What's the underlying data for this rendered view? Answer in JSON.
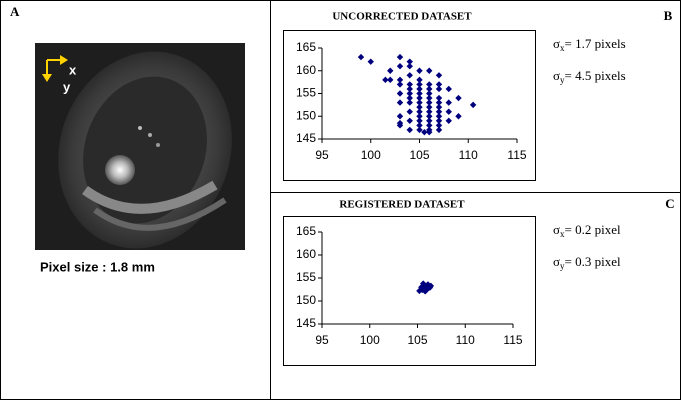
{
  "panel_a": {
    "label": "A",
    "caption": "Pixel size : 1.8 mm",
    "axis_labels": [
      "x",
      "y"
    ]
  },
  "chart_data": [
    {
      "type": "scatter",
      "panel": "B",
      "title": "UNCORRECTED DATASET",
      "color": "#00007f",
      "x": [
        99,
        100,
        103,
        103,
        104,
        102,
        101.5,
        102,
        103,
        104,
        104,
        105,
        105,
        106,
        107,
        103,
        105,
        106,
        107,
        104,
        105,
        106,
        107,
        108,
        103,
        104,
        105,
        106,
        107,
        109,
        104,
        105,
        106,
        103,
        104,
        105,
        106,
        107,
        108,
        110.5,
        105,
        106,
        107,
        104,
        105,
        106,
        107,
        108,
        103,
        105,
        106,
        107,
        104,
        105,
        106,
        107,
        108,
        103,
        105,
        106,
        107,
        104,
        105,
        106,
        107,
        106,
        105.5,
        103,
        109,
        104
      ],
      "y": [
        163,
        162,
        163,
        161,
        162,
        160,
        158,
        158,
        158,
        159,
        157,
        160,
        158,
        160,
        159,
        157,
        157,
        157,
        157,
        156,
        156,
        156,
        156,
        156,
        155,
        155,
        155,
        155,
        154,
        154,
        154,
        154,
        154,
        153,
        153,
        153,
        153,
        153,
        153,
        152.5,
        152,
        152,
        152,
        151,
        151,
        151,
        151,
        151,
        150,
        150,
        150,
        150,
        149,
        149,
        149,
        149,
        149,
        148,
        148,
        148,
        148,
        147,
        147,
        147,
        147,
        146.5,
        146.5,
        148.5,
        150,
        161
      ],
      "xlim": [
        95,
        115
      ],
      "xticks": [
        95,
        100,
        105,
        110,
        115
      ],
      "ylim": [
        145,
        165
      ],
      "yticks": [
        145,
        150,
        155,
        160,
        165
      ],
      "annotations": [
        {
          "symbol": "σ",
          "subscript": "x",
          "text": "= 1.7 pixels"
        },
        {
          "symbol": "σ",
          "subscript": "y",
          "text": "= 4.5 pixels"
        }
      ]
    },
    {
      "type": "scatter",
      "panel": "C",
      "title": "REGISTERED DATASET",
      "color": "#00007f",
      "x": [
        105.2,
        105.5,
        105.8,
        106,
        106.3,
        105.4,
        105.7,
        106,
        106.2,
        105.5,
        105.8,
        106.1,
        105.6,
        105.9,
        106.4
      ],
      "y": [
        152.2,
        152.4,
        152.1,
        152.6,
        152.9,
        153,
        153.2,
        153.4,
        153.1,
        152.8,
        152.7,
        153.6,
        153.8,
        152.3,
        153.3
      ],
      "xlim": [
        95,
        115
      ],
      "xticks": [
        95,
        100,
        105,
        110,
        115
      ],
      "ylim": [
        145,
        165
      ],
      "yticks": [
        145,
        150,
        155,
        160,
        165
      ],
      "annotations": [
        {
          "symbol": "σ",
          "subscript": "x",
          "text": "= 0.2 pixel"
        },
        {
          "symbol": "σ",
          "subscript": "y",
          "text": "= 0.3 pixel"
        }
      ]
    }
  ]
}
